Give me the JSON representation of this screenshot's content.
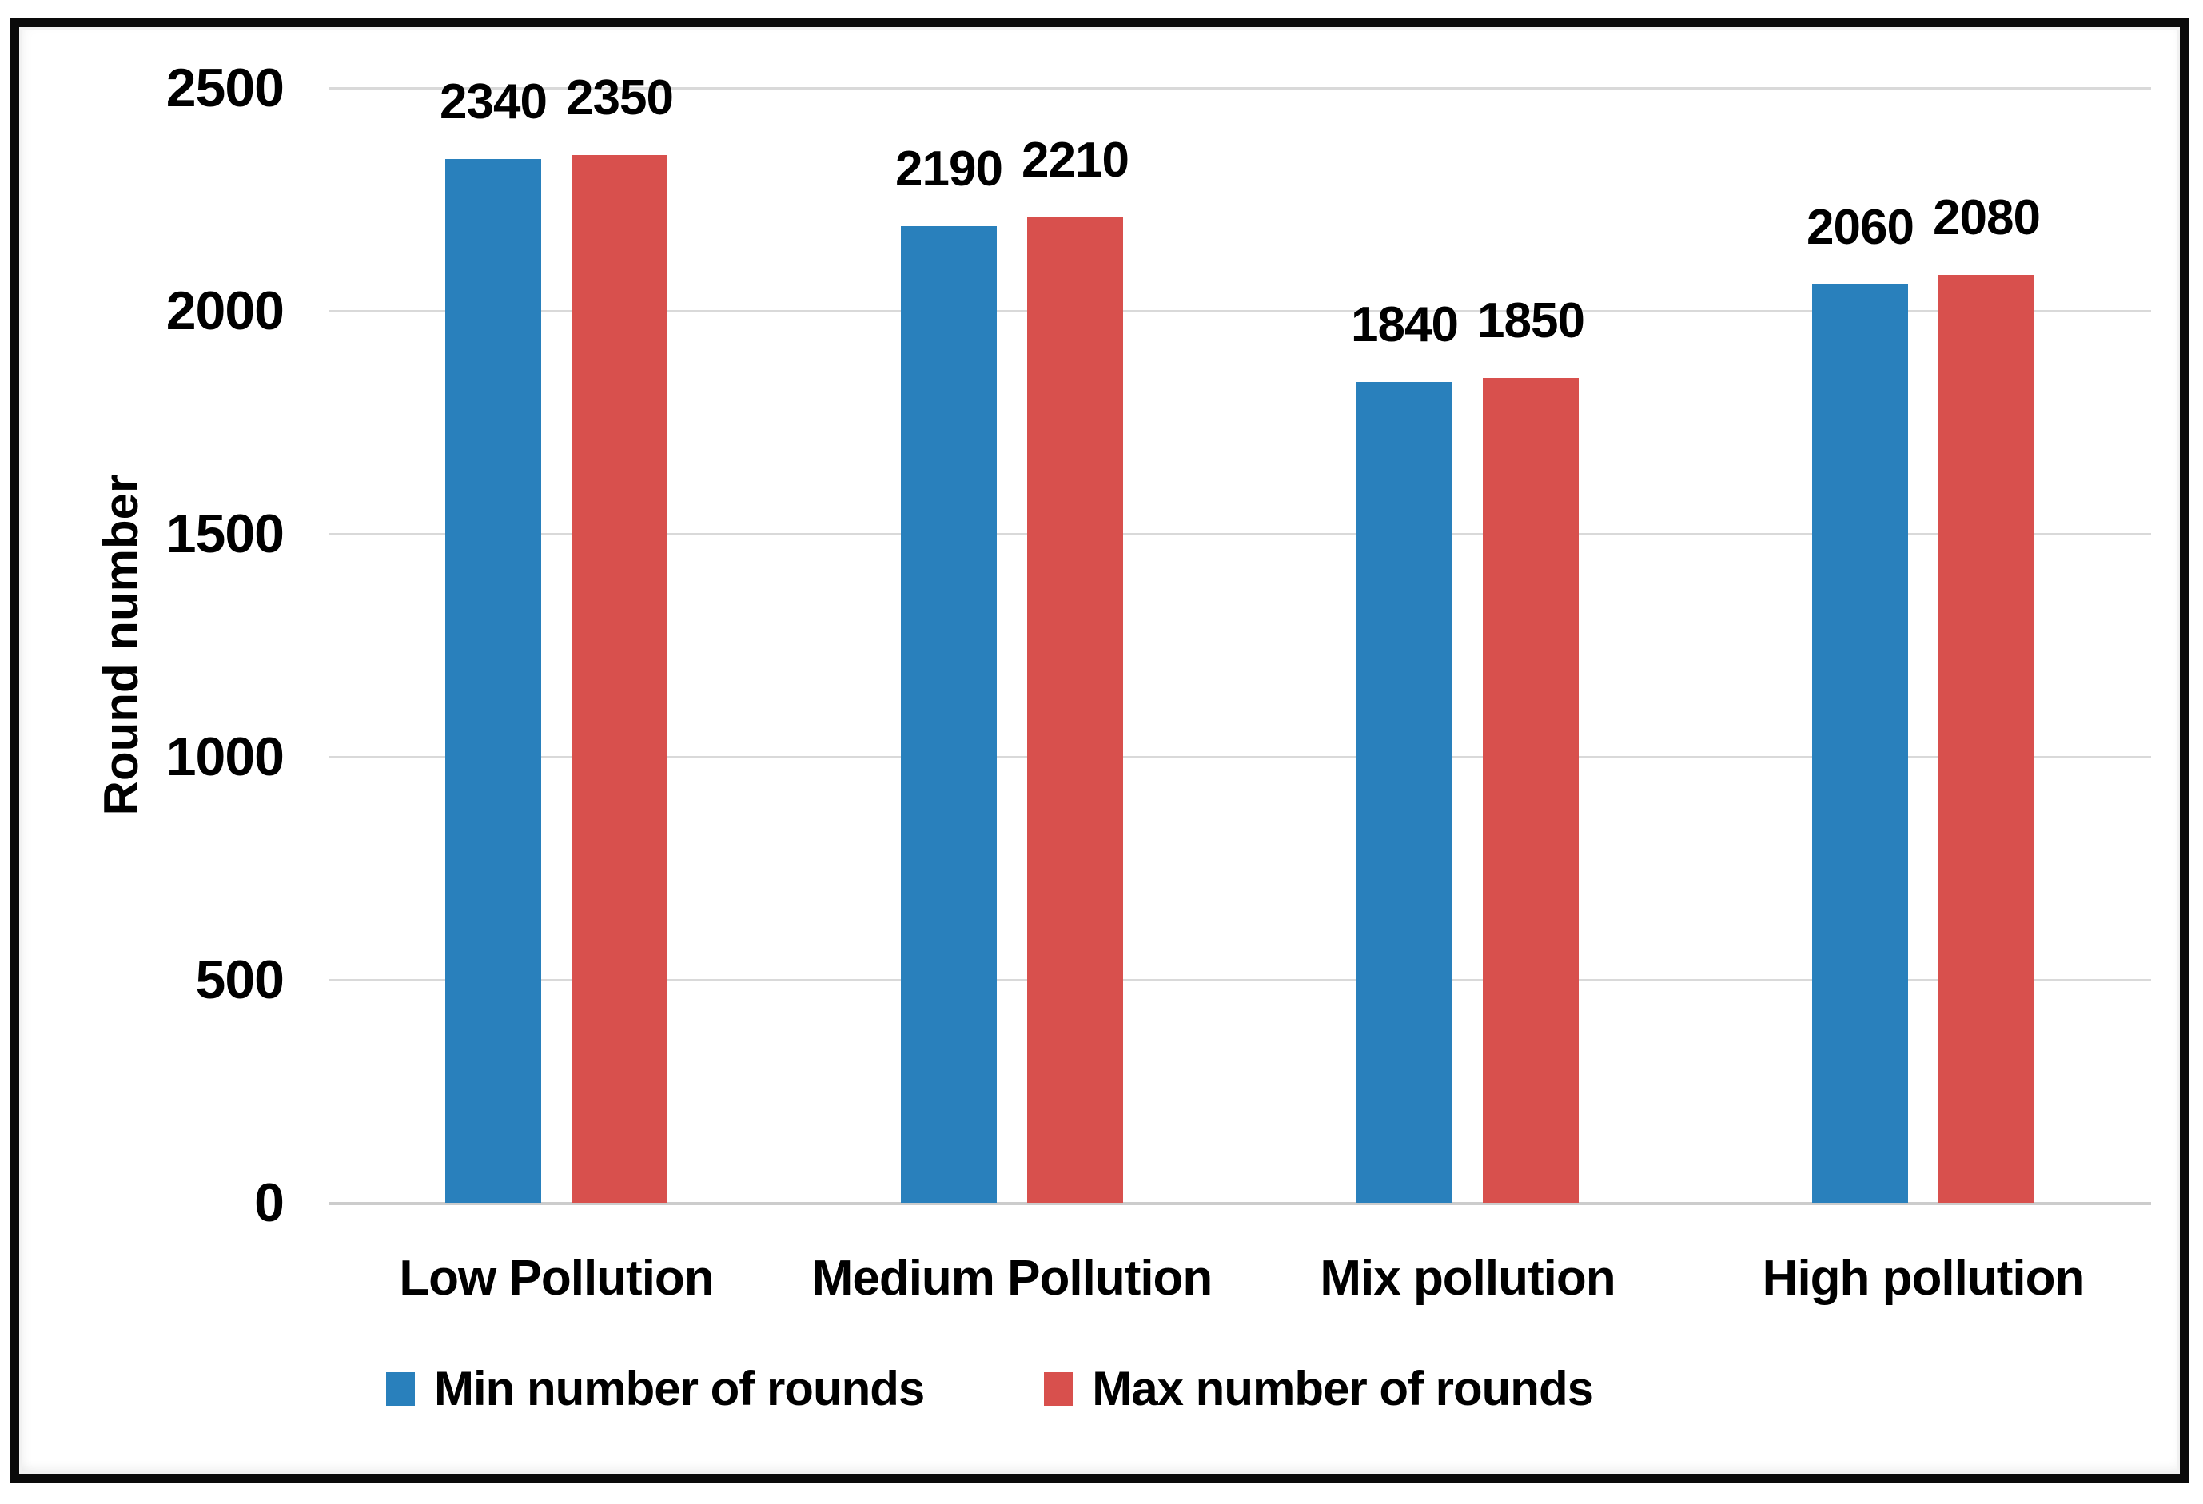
{
  "chart_data": {
    "type": "bar",
    "title": "",
    "categories": [
      "Low Pollution",
      "Medium Pollution",
      "Mix pollution",
      "High pollution"
    ],
    "series": [
      {
        "name": "Min number of rounds",
        "color": "#2980BC",
        "values": [
          2340,
          2190,
          1840,
          2060
        ]
      },
      {
        "name": "Max number of rounds",
        "color": "#D8504D",
        "values": [
          2350,
          2210,
          1850,
          2080
        ]
      }
    ],
    "xlabel": "",
    "ylabel": "Round number",
    "ylim": [
      0,
      2500
    ],
    "yticks": [
      0,
      500,
      1000,
      1500,
      2000,
      2500
    ],
    "grid": true,
    "data_labels": true,
    "legend_position": "bottom"
  },
  "style": {
    "grid_color": "#d9d9d9",
    "axis_line_color": "#cccccc",
    "text_color": "#000000",
    "frame_color": "#0a0a0a",
    "background": "#ffffff"
  }
}
